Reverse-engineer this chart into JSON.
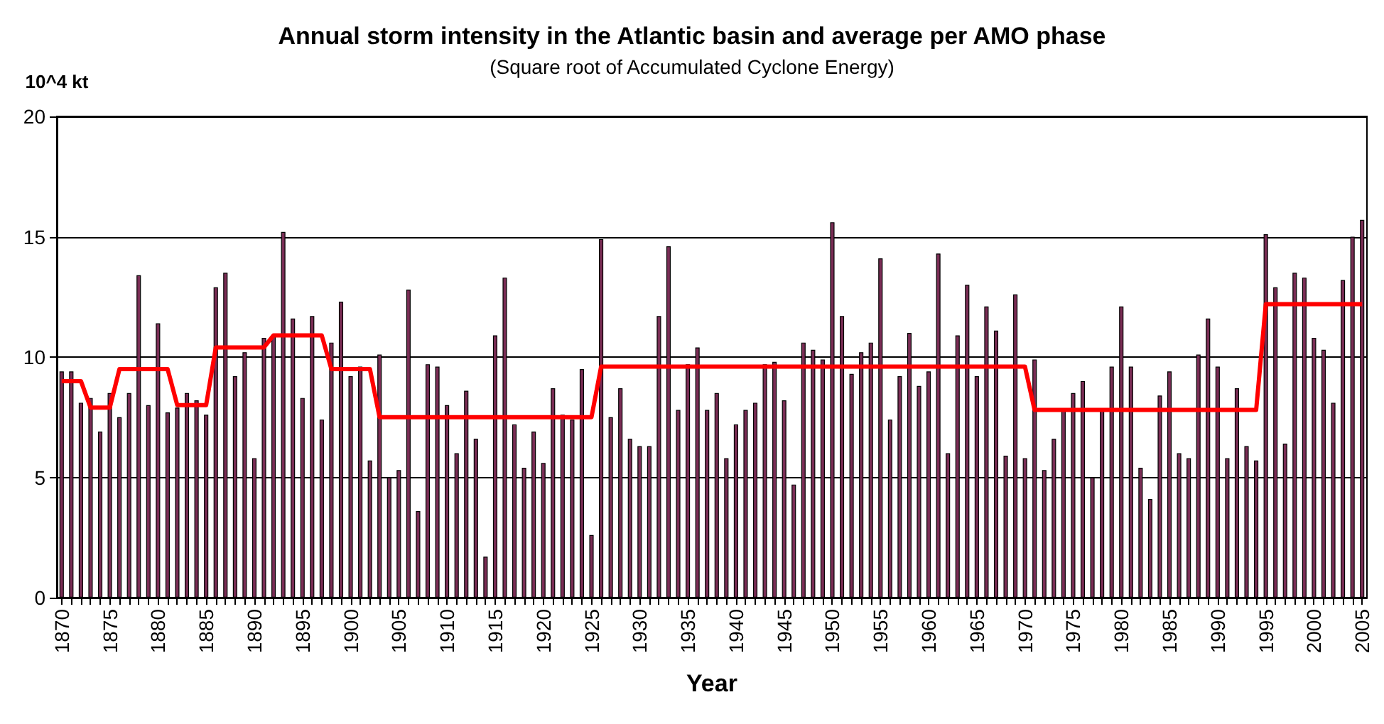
{
  "chart_data": {
    "type": "bar",
    "title": "Annual storm intensity in the Atlantic basin and average per AMO phase",
    "subtitle": "(Square root of Accumulated Cyclone Energy)",
    "xlabel": "Year",
    "ylabel": "10^4 kt",
    "categories": [
      "1870",
      null,
      null,
      null,
      null,
      "1875",
      null,
      null,
      null,
      null,
      "1880",
      null,
      null,
      null,
      null,
      "1885",
      null,
      null,
      null,
      null,
      "1890",
      null,
      null,
      null,
      null,
      "1895",
      null,
      null,
      null,
      null,
      "1900",
      null,
      null,
      null,
      null,
      "1905",
      null,
      null,
      null,
      null,
      "1910",
      null,
      null,
      null,
      null,
      "1915",
      null,
      null,
      null,
      null,
      "1920",
      null,
      null,
      null,
      null,
      "1925",
      null,
      null,
      null,
      null,
      "1930",
      null,
      null,
      null,
      null,
      "1935",
      null,
      null,
      null,
      null,
      "1940",
      null,
      null,
      null,
      null,
      "1945",
      null,
      null,
      null,
      null,
      "1950",
      null,
      null,
      null,
      null,
      "1955",
      null,
      null,
      null,
      null,
      "1960",
      null,
      null,
      null,
      null,
      "1965",
      null,
      null,
      null,
      null,
      "1970",
      null,
      null,
      null,
      null,
      "1975",
      null,
      null,
      null,
      null,
      "1980",
      null,
      null,
      null,
      null,
      "1985",
      null,
      null,
      null,
      null,
      "1990",
      null,
      null,
      null,
      null,
      "1995",
      null,
      null,
      null,
      null,
      "2000",
      null,
      null,
      null,
      null,
      "2005"
    ],
    "series": [
      {
        "color": "#7a2d55",
        "values": [
          9.4,
          9.4,
          8.1,
          8.3,
          6.9,
          8.5,
          7.5,
          8.5,
          13.4,
          8.0,
          11.4,
          7.7,
          7.9,
          8.5,
          8.2,
          7.6,
          12.9,
          13.5,
          9.2,
          10.2,
          5.8,
          10.8,
          10.9,
          15.2,
          11.6,
          8.3,
          11.7,
          7.4,
          10.6,
          12.3,
          9.2,
          9.6,
          5.7,
          10.1,
          5.0,
          5.3,
          12.8,
          3.6,
          9.7,
          9.6,
          8.0,
          6.0,
          8.6,
          6.6,
          1.7,
          10.9,
          13.3,
          7.2,
          5.4,
          6.9,
          5.6,
          8.7,
          7.6,
          7.4,
          9.5,
          2.6,
          14.9,
          7.5,
          8.7,
          6.6,
          6.3,
          6.3,
          11.7,
          14.6,
          7.8,
          9.7,
          10.4,
          7.8,
          8.5,
          5.8,
          7.2,
          7.8,
          8.1,
          9.7,
          9.8,
          8.2,
          4.7,
          10.6,
          10.3,
          9.9,
          15.6,
          11.7,
          9.3,
          10.2,
          10.6,
          14.1,
          7.4,
          9.2,
          11.0,
          8.8,
          9.4,
          14.3,
          6.0,
          10.9,
          13.0,
          9.2,
          12.1,
          11.1,
          5.9,
          12.6,
          5.8,
          9.9,
          5.3,
          6.6,
          7.8,
          8.5,
          9.0,
          5.0,
          7.8,
          9.6,
          12.1,
          9.6,
          5.4,
          4.1,
          8.4,
          9.4,
          6.0,
          5.8,
          10.1,
          11.6,
          9.6,
          5.8,
          8.7,
          6.3,
          5.7,
          15.1,
          12.9,
          6.4,
          13.5,
          13.3,
          10.8,
          10.3,
          8.1,
          13.2,
          15.0,
          15.7
        ]
      },
      {
        "type": "line",
        "color": "#ff0000",
        "values": [
          9.0,
          9.0,
          9.0,
          7.9,
          7.9,
          7.9,
          9.5,
          9.5,
          9.5,
          9.5,
          9.5,
          9.5,
          8.0,
          8.0,
          8.0,
          8.0,
          10.4,
          10.4,
          10.4,
          10.4,
          10.4,
          10.4,
          10.9,
          10.9,
          10.9,
          10.9,
          10.9,
          10.9,
          9.5,
          9.5,
          9.5,
          9.5,
          9.5,
          7.5,
          7.5,
          7.5,
          7.5,
          7.5,
          7.5,
          7.5,
          7.5,
          7.5,
          7.5,
          7.5,
          7.5,
          7.5,
          7.5,
          7.5,
          7.5,
          7.5,
          7.5,
          7.5,
          7.5,
          7.5,
          7.5,
          7.5,
          9.6,
          9.6,
          9.6,
          9.6,
          9.6,
          9.6,
          9.6,
          9.6,
          9.6,
          9.6,
          9.6,
          9.6,
          9.6,
          9.6,
          9.6,
          9.6,
          9.6,
          9.6,
          9.6,
          9.6,
          9.6,
          9.6,
          9.6,
          9.6,
          9.6,
          9.6,
          9.6,
          9.6,
          9.6,
          9.6,
          9.6,
          9.6,
          9.6,
          9.6,
          9.6,
          9.6,
          9.6,
          9.6,
          9.6,
          9.6,
          9.6,
          9.6,
          9.6,
          9.6,
          9.6,
          7.8,
          7.8,
          7.8,
          7.8,
          7.8,
          7.8,
          7.8,
          7.8,
          7.8,
          7.8,
          7.8,
          7.8,
          7.8,
          7.8,
          7.8,
          7.8,
          7.8,
          7.8,
          7.8,
          7.8,
          7.8,
          7.8,
          7.8,
          7.8,
          12.2,
          12.2,
          12.2,
          12.2,
          12.2,
          12.2,
          12.2,
          12.2,
          12.2,
          12.2,
          12.2
        ]
      }
    ],
    "ylim": [
      0,
      20
    ],
    "yticks": [
      0,
      5,
      10,
      15,
      20
    ],
    "grid": "y",
    "marker": "none"
  }
}
